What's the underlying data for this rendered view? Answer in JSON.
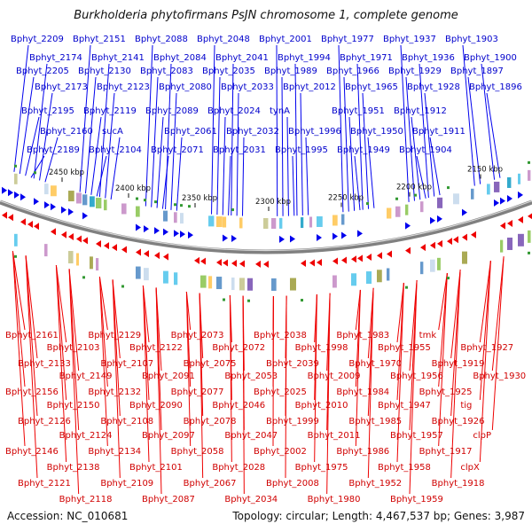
{
  "title": "Burkholderia phytofirmans PsJN chromosome 1, complete genome",
  "accession_label": "Accession: NC_010681",
  "summary_label": "Topology: circular; Length: 4,467,537 bp; Genes: 3,987",
  "colors": {
    "forward_strand": "#0000ee",
    "reverse_strand": "#ee0000",
    "top_labels": "#0000cc",
    "bottom_labels": "#d00000",
    "backbone": "#808080"
  },
  "scale_ticks": [
    "2450 kbp",
    "2400 kbp",
    "2350 kbp",
    "2300 kbp",
    "2250 kbp",
    "2200 kbp",
    "2150 kbp"
  ],
  "top_genes": [
    "Bphyt_2209",
    "Bphyt_2174",
    "Bphyt_2205",
    "Bphyt_2173",
    "Bphyt_2195",
    "Bphyt_2160",
    "Bphyt_2189",
    "Bphyt_2151",
    "Bphyt_2141",
    "Bphyt_2130",
    "Bphyt_2123",
    "Bphyt_2119",
    "sucA",
    "Bphyt_2104",
    "Bphyt_2088",
    "Bphyt_2084",
    "Bphyt_2083",
    "Bphyt_2080",
    "Bphyt_2089",
    "Bphyt_2061",
    "Bphyt_2071",
    "Bphyt_2048",
    "Bphyt_2041",
    "Bphyt_2035",
    "Bphyt_2033",
    "Bphyt_2024",
    "Bphyt_2032",
    "Bphyt_2031",
    "Bphyt_2001",
    "Bphyt_1994",
    "Bphyt_1989",
    "Bphyt_2012",
    "tynA",
    "Bphyt_1996",
    "Bphyt_1995",
    "Bphyt_1977",
    "Bphyt_1971",
    "Bphyt_1966",
    "Bphyt_1965",
    "Bphyt_1951",
    "Bphyt_1950",
    "Bphyt_1949",
    "Bphyt_1937",
    "Bphyt_1936",
    "Bphyt_1929",
    "Bphyt_1928",
    "Bphyt_1912",
    "Bphyt_1911",
    "Bphyt_1904",
    "Bphyt_1903",
    "Bphyt_1900",
    "Bphyt_1897",
    "Bphyt_1896"
  ],
  "bottom_genes": [
    "Bphyt_2161",
    "Bphyt_2133",
    "Bphyt_2156",
    "Bphyt_2126",
    "Bphyt_2146",
    "Bphyt_2121",
    "Bphyt_2103",
    "Bphyt_2149",
    "Bphyt_2150",
    "Bphyt_2124",
    "Bphyt_2138",
    "Bphyt_2118",
    "Bphyt_2129",
    "Bphyt_2107",
    "Bphyt_2132",
    "Bphyt_2108",
    "Bphyt_2134",
    "Bphyt_2109",
    "Bphyt_2122",
    "Bphyt_2091",
    "Bphyt_2090",
    "Bphyt_2097",
    "Bphyt_2101",
    "Bphyt_2087",
    "Bphyt_2073",
    "Bphyt_2075",
    "Bphyt_2077",
    "Bphyt_2078",
    "Bphyt_2058",
    "Bphyt_2067",
    "Bphyt_2072",
    "Bphyt_2053",
    "Bphyt_2046",
    "Bphyt_2047",
    "Bphyt_2028",
    "Bphyt_2034",
    "Bphyt_2038",
    "Bphyt_2039",
    "Bphyt_2025",
    "Bphyt_1999",
    "Bphyt_2002",
    "Bphyt_2008",
    "Bphyt_1998",
    "Bphyt_2009",
    "Bphyt_2010",
    "Bphyt_2011",
    "Bphyt_1975",
    "Bphyt_1980",
    "Bphyt_1983",
    "Bphyt_1970",
    "Bphyt_1984",
    "Bphyt_1985",
    "Bphyt_1986",
    "Bphyt_1952",
    "Bphyt_1955",
    "Bphyt_1956",
    "Bphyt_1947",
    "Bphyt_1957",
    "Bphyt_1958",
    "Bphyt_1959",
    "tmk",
    "Bphyt_1919",
    "Bphyt_1925",
    "Bphyt_1926",
    "Bphyt_1917",
    "Bphyt_1918",
    "Bphyt_1927",
    "Bphyt_1930",
    "tig",
    "clpP",
    "clpX"
  ]
}
